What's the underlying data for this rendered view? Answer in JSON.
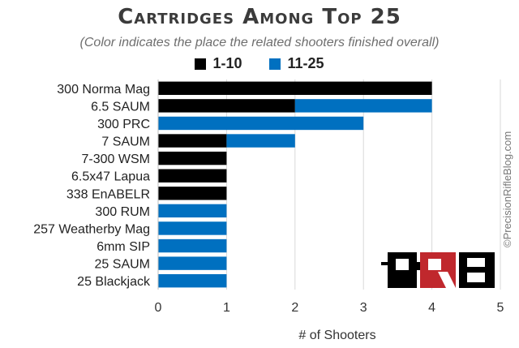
{
  "chart_data": {
    "type": "bar",
    "orientation": "horizontal",
    "stacked": true,
    "title": "Cartridges Among Top 25",
    "subtitle": "(Color indicates the place the related shooters finished overall)",
    "xlabel": "# of Shooters",
    "ylabel": "",
    "xlim": [
      0,
      5
    ],
    "xticks": [
      0,
      1,
      2,
      3,
      4,
      5
    ],
    "grid": true,
    "legend_position": "top-center",
    "categories": [
      "300 Norma Mag",
      "6.5 SAUM",
      "300 PRC",
      "7 SAUM",
      "7-300 WSM",
      "6.5x47 Lapua",
      "338 EnABELR",
      "300 RUM",
      "257 Weatherby Mag",
      "6mm SIP",
      "25 SAUM",
      "25 Blackjack"
    ],
    "series": [
      {
        "name": "1-10",
        "color": "#000000",
        "values": [
          4,
          2,
          0,
          1,
          1,
          1,
          1,
          0,
          0,
          0,
          0,
          0
        ]
      },
      {
        "name": "11-25",
        "color": "#0070C0",
        "values": [
          0,
          2,
          3,
          1,
          0,
          0,
          0,
          1,
          1,
          1,
          1,
          1
        ]
      }
    ]
  },
  "watermark": "©PrecisionRifleBlog.com",
  "logo_text": "PRB"
}
